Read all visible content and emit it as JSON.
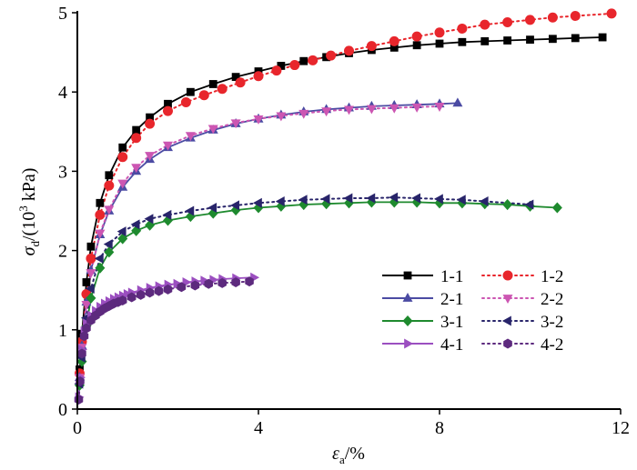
{
  "chart_data": {
    "type": "line",
    "xlabel": {
      "main": "ε",
      "sub": "a",
      "rest": "/%"
    },
    "ylabel": {
      "main": "σ",
      "sub": "d",
      "pre": "/(10",
      "sup": "3",
      "post": " kPa)"
    },
    "xlim": [
      0,
      12
    ],
    "ylim": [
      0,
      5
    ],
    "xticks": [
      "0",
      "4",
      "8",
      "12"
    ],
    "yticks": [
      "0",
      "1",
      "2",
      "3",
      "4",
      "5"
    ],
    "grid": false,
    "legend_position": "bottom-right",
    "series": [
      {
        "name": "1-1",
        "color": "#000000",
        "marker": "square",
        "dash": false,
        "x": [
          0.05,
          0.1,
          0.2,
          0.3,
          0.5,
          0.7,
          1.0,
          1.3,
          1.6,
          2.0,
          2.5,
          3.0,
          3.5,
          4.0,
          4.5,
          5.0,
          5.5,
          6.0,
          6.5,
          7.0,
          7.5,
          8.0,
          8.5,
          9.0,
          9.5,
          10.0,
          10.5,
          11.0,
          11.6
        ],
        "y": [
          0.5,
          0.95,
          1.6,
          2.05,
          2.6,
          2.95,
          3.3,
          3.52,
          3.68,
          3.85,
          4.0,
          4.1,
          4.19,
          4.26,
          4.33,
          4.39,
          4.44,
          4.49,
          4.53,
          4.56,
          4.59,
          4.61,
          4.63,
          4.64,
          4.65,
          4.66,
          4.67,
          4.68,
          4.69
        ]
      },
      {
        "name": "1-2",
        "color": "#e8262c",
        "marker": "circle",
        "dash": true,
        "x": [
          0.05,
          0.1,
          0.2,
          0.3,
          0.5,
          0.7,
          1.0,
          1.3,
          1.6,
          2.0,
          2.4,
          2.8,
          3.2,
          3.6,
          4.0,
          4.4,
          4.8,
          5.2,
          5.6,
          6.0,
          6.5,
          7.0,
          7.5,
          8.0,
          8.5,
          9.0,
          9.5,
          10.0,
          10.5,
          11.0,
          11.8
        ],
        "y": [
          0.45,
          0.85,
          1.45,
          1.9,
          2.45,
          2.82,
          3.18,
          3.42,
          3.6,
          3.76,
          3.87,
          3.96,
          4.04,
          4.12,
          4.2,
          4.27,
          4.34,
          4.4,
          4.46,
          4.52,
          4.58,
          4.64,
          4.7,
          4.75,
          4.8,
          4.85,
          4.88,
          4.91,
          4.94,
          4.96,
          4.99
        ]
      },
      {
        "name": "2-1",
        "color": "#4b4ba3",
        "marker": "triangle-up",
        "dash": false,
        "x": [
          0.05,
          0.1,
          0.2,
          0.3,
          0.5,
          0.7,
          1.0,
          1.3,
          1.6,
          2.0,
          2.5,
          3.0,
          3.5,
          4.0,
          4.5,
          5.0,
          5.5,
          6.0,
          6.5,
          7.0,
          7.5,
          8.0,
          8.4
        ],
        "y": [
          0.4,
          0.8,
          1.35,
          1.75,
          2.2,
          2.5,
          2.8,
          3.0,
          3.15,
          3.3,
          3.42,
          3.52,
          3.6,
          3.66,
          3.71,
          3.75,
          3.78,
          3.8,
          3.82,
          3.83,
          3.84,
          3.85,
          3.86
        ]
      },
      {
        "name": "2-2",
        "color": "#cc56b2",
        "marker": "triangle-down",
        "dash": true,
        "x": [
          0.05,
          0.1,
          0.2,
          0.3,
          0.5,
          0.7,
          1.0,
          1.3,
          1.6,
          2.0,
          2.5,
          3.0,
          3.5,
          4.0,
          4.5,
          5.0,
          5.5,
          6.0,
          6.5,
          7.0,
          7.5,
          8.0
        ],
        "y": [
          0.4,
          0.78,
          1.32,
          1.72,
          2.22,
          2.52,
          2.85,
          3.05,
          3.2,
          3.33,
          3.45,
          3.54,
          3.61,
          3.66,
          3.7,
          3.73,
          3.76,
          3.78,
          3.79,
          3.8,
          3.81,
          3.82
        ]
      },
      {
        "name": "3-1",
        "color": "#1e8a2e",
        "marker": "diamond",
        "dash": false,
        "x": [
          0.05,
          0.1,
          0.2,
          0.3,
          0.5,
          0.7,
          1.0,
          1.3,
          1.6,
          2.0,
          2.5,
          3.0,
          3.5,
          4.0,
          4.5,
          5.0,
          5.5,
          6.0,
          6.5,
          7.0,
          7.5,
          8.0,
          8.5,
          9.0,
          9.5,
          10.0,
          10.6
        ],
        "y": [
          0.3,
          0.6,
          1.05,
          1.4,
          1.78,
          1.98,
          2.15,
          2.25,
          2.32,
          2.38,
          2.43,
          2.47,
          2.51,
          2.54,
          2.56,
          2.58,
          2.59,
          2.6,
          2.61,
          2.61,
          2.61,
          2.6,
          2.6,
          2.59,
          2.58,
          2.56,
          2.54
        ]
      },
      {
        "name": "3-2",
        "color": "#28246a",
        "marker": "triangle-left",
        "dash": true,
        "x": [
          0.05,
          0.1,
          0.2,
          0.3,
          0.5,
          0.7,
          1.0,
          1.3,
          1.6,
          2.0,
          2.5,
          3.0,
          3.5,
          4.0,
          4.5,
          5.0,
          5.5,
          6.0,
          6.5,
          7.0,
          7.5,
          8.0,
          8.5,
          9.0,
          10.0
        ],
        "y": [
          0.32,
          0.65,
          1.15,
          1.52,
          1.9,
          2.08,
          2.24,
          2.33,
          2.4,
          2.45,
          2.5,
          2.54,
          2.57,
          2.6,
          2.62,
          2.64,
          2.65,
          2.66,
          2.66,
          2.67,
          2.66,
          2.65,
          2.64,
          2.62,
          2.58
        ]
      },
      {
        "name": "4-1",
        "color": "#9b4fc0",
        "marker": "triangle-right",
        "dash": false,
        "x": [
          0.03,
          0.06,
          0.1,
          0.15,
          0.2,
          0.3,
          0.4,
          0.5,
          0.6,
          0.7,
          0.8,
          0.9,
          1.0,
          1.1,
          1.2,
          1.4,
          1.6,
          1.8,
          2.0,
          2.2,
          2.4,
          2.6,
          2.8,
          3.0,
          3.2,
          3.5,
          3.9
        ],
        "y": [
          0.15,
          0.4,
          0.75,
          0.98,
          1.08,
          1.18,
          1.24,
          1.29,
          1.33,
          1.36,
          1.39,
          1.41,
          1.43,
          1.45,
          1.47,
          1.5,
          1.53,
          1.55,
          1.57,
          1.58,
          1.6,
          1.61,
          1.62,
          1.63,
          1.64,
          1.65,
          1.66
        ]
      },
      {
        "name": "4-2",
        "color": "#5d2a7e",
        "marker": "hexagon",
        "dash": true,
        "x": [
          0.03,
          0.06,
          0.1,
          0.15,
          0.2,
          0.3,
          0.4,
          0.5,
          0.6,
          0.7,
          0.8,
          0.9,
          1.0,
          1.2,
          1.4,
          1.6,
          1.8,
          2.0,
          2.3,
          2.6,
          2.9,
          3.2,
          3.5,
          3.8
        ],
        "y": [
          0.12,
          0.35,
          0.7,
          0.92,
          1.02,
          1.12,
          1.18,
          1.23,
          1.27,
          1.3,
          1.33,
          1.35,
          1.37,
          1.41,
          1.44,
          1.47,
          1.49,
          1.51,
          1.54,
          1.56,
          1.58,
          1.59,
          1.6,
          1.61
        ]
      }
    ]
  }
}
